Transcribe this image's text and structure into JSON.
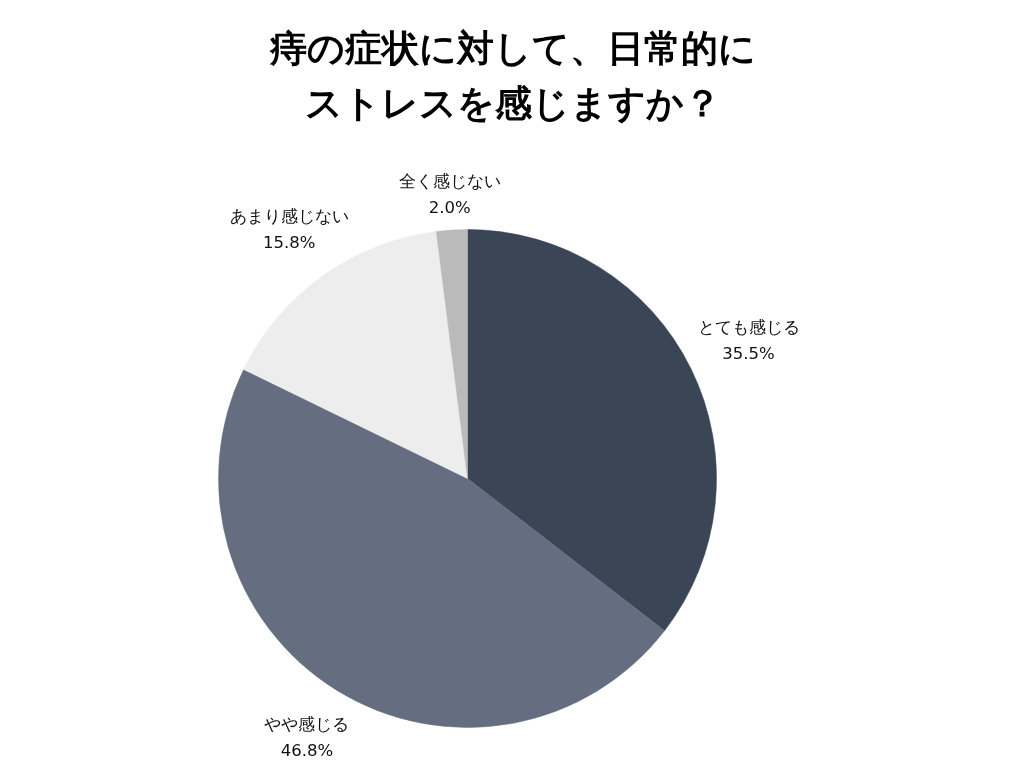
{
  "chart_data": {
    "type": "pie",
    "title": "痔の症状に対して、日常的にストレスを感じますか？",
    "categories": [
      "とても感じる",
      "やや感じる",
      "あまり感じない",
      "全く感じない"
    ],
    "values": [
      35.5,
      46.8,
      15.8,
      2.0
    ],
    "colors": [
      "#3a4556",
      "#646e80",
      "#ededed",
      "#bababa"
    ],
    "value_labels": [
      "35.5%",
      "46.8%",
      "15.8%",
      "2.0%"
    ]
  }
}
